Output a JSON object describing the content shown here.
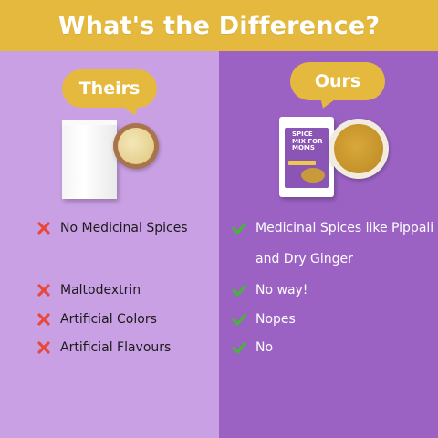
{
  "header": {
    "title": "What's the Difference?"
  },
  "left": {
    "label": "Theirs",
    "items": [
      "No Medicinal Spices",
      "Maltodextrin",
      "Artificial Colors",
      "Artificial Flavours"
    ]
  },
  "right": {
    "label": "Ours",
    "pack_brand": "SPICE MIX FOR MOMS",
    "items": [
      "Medicinal Spices like Pippali",
      "No way!",
      "Nopes",
      "No"
    ],
    "item_continuation": "and Dry Ginger"
  },
  "colors": {
    "header": "#e4b93d",
    "left_panel": "#caa0e4",
    "right_panel": "#9b62c4",
    "cross": "#e8483b",
    "check": "#49b23d"
  },
  "icons": {
    "negative": "cross-icon",
    "positive": "check-icon"
  }
}
